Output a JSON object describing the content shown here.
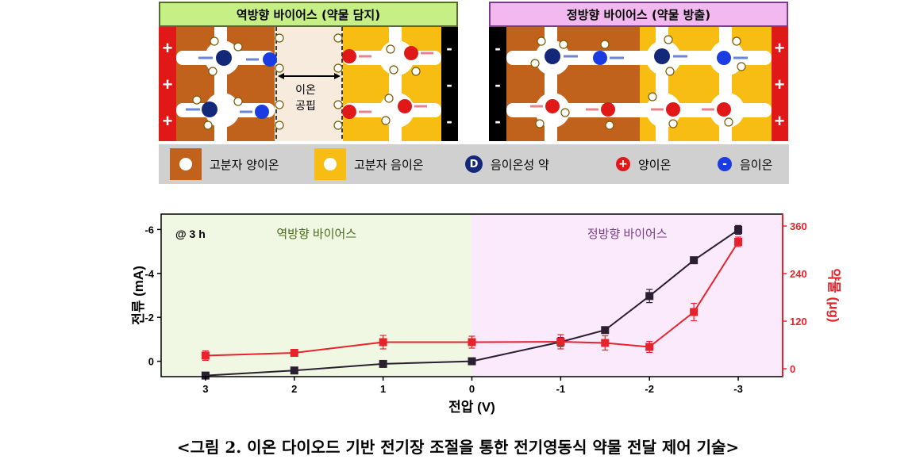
{
  "panels": {
    "left_title": "역방향 바이어스 (약물 담지)",
    "right_title": "정방향 바이어스 (약물 방출)",
    "gap_label_line1": "이온",
    "gap_label_line2": "공핍",
    "plus": "+",
    "minus": "-",
    "drug_symbol": "D"
  },
  "legend": {
    "items": [
      {
        "label": "고분자 양이온"
      },
      {
        "label": "고분자 음이온"
      },
      {
        "label": "음이온성 약"
      },
      {
        "label": "양이온"
      },
      {
        "label": "음이온"
      }
    ]
  },
  "chart_data": {
    "type": "line",
    "annotation": "@ 3 h",
    "regions": [
      {
        "label": "역방향 바이어스",
        "x_from": 3.5,
        "x_to": 0,
        "color": "#f0f8e4"
      },
      {
        "label": "정방향 바이어스",
        "x_from": 0,
        "x_to": -3.5,
        "color": "#fbeafb"
      }
    ],
    "xlabel": "전압 (V)",
    "ylabel_left": "전류 (mA)",
    "ylabel_right": "약물 (μg)",
    "xlim": [
      3.5,
      -3.5
    ],
    "ylim_left": [
      0.7,
      -6.7
    ],
    "ylim_right": [
      -20,
      390
    ],
    "x_ticks": [
      "3",
      "2",
      "1",
      "0",
      "-1",
      "-2",
      "-3"
    ],
    "y_left_ticks": [
      "-6",
      "-4",
      "-2",
      "0"
    ],
    "y_right_ticks": [
      "360",
      "240",
      "120",
      "0"
    ],
    "series": [
      {
        "axis": "left",
        "color": "#2a1f30",
        "x": [
          3,
          2,
          1,
          0,
          -1,
          -1.5,
          -2,
          -2.5,
          -3
        ],
        "y": [
          0.65,
          0.42,
          0.12,
          0.0,
          -0.88,
          -1.42,
          -2.97,
          -4.6,
          -5.98
        ],
        "err": [
          0.1,
          0.1,
          0.1,
          0.1,
          0.2,
          0.1,
          0.3,
          0.1,
          0.2
        ]
      },
      {
        "axis": "right",
        "color": "#e8222a",
        "x": [
          3,
          2,
          1,
          0,
          -1,
          -1.5,
          -2,
          -2.5,
          -3
        ],
        "y": [
          33,
          40,
          67,
          67,
          68,
          65,
          55,
          143,
          320
        ],
        "err": [
          12,
          8,
          17,
          15,
          18,
          18,
          14,
          22,
          12
        ]
      }
    ]
  },
  "caption": "<그림 2. 이온 다이오드 기반 전기장 조절을 통한 전기영동식 약물 전달 제어 기술>"
}
